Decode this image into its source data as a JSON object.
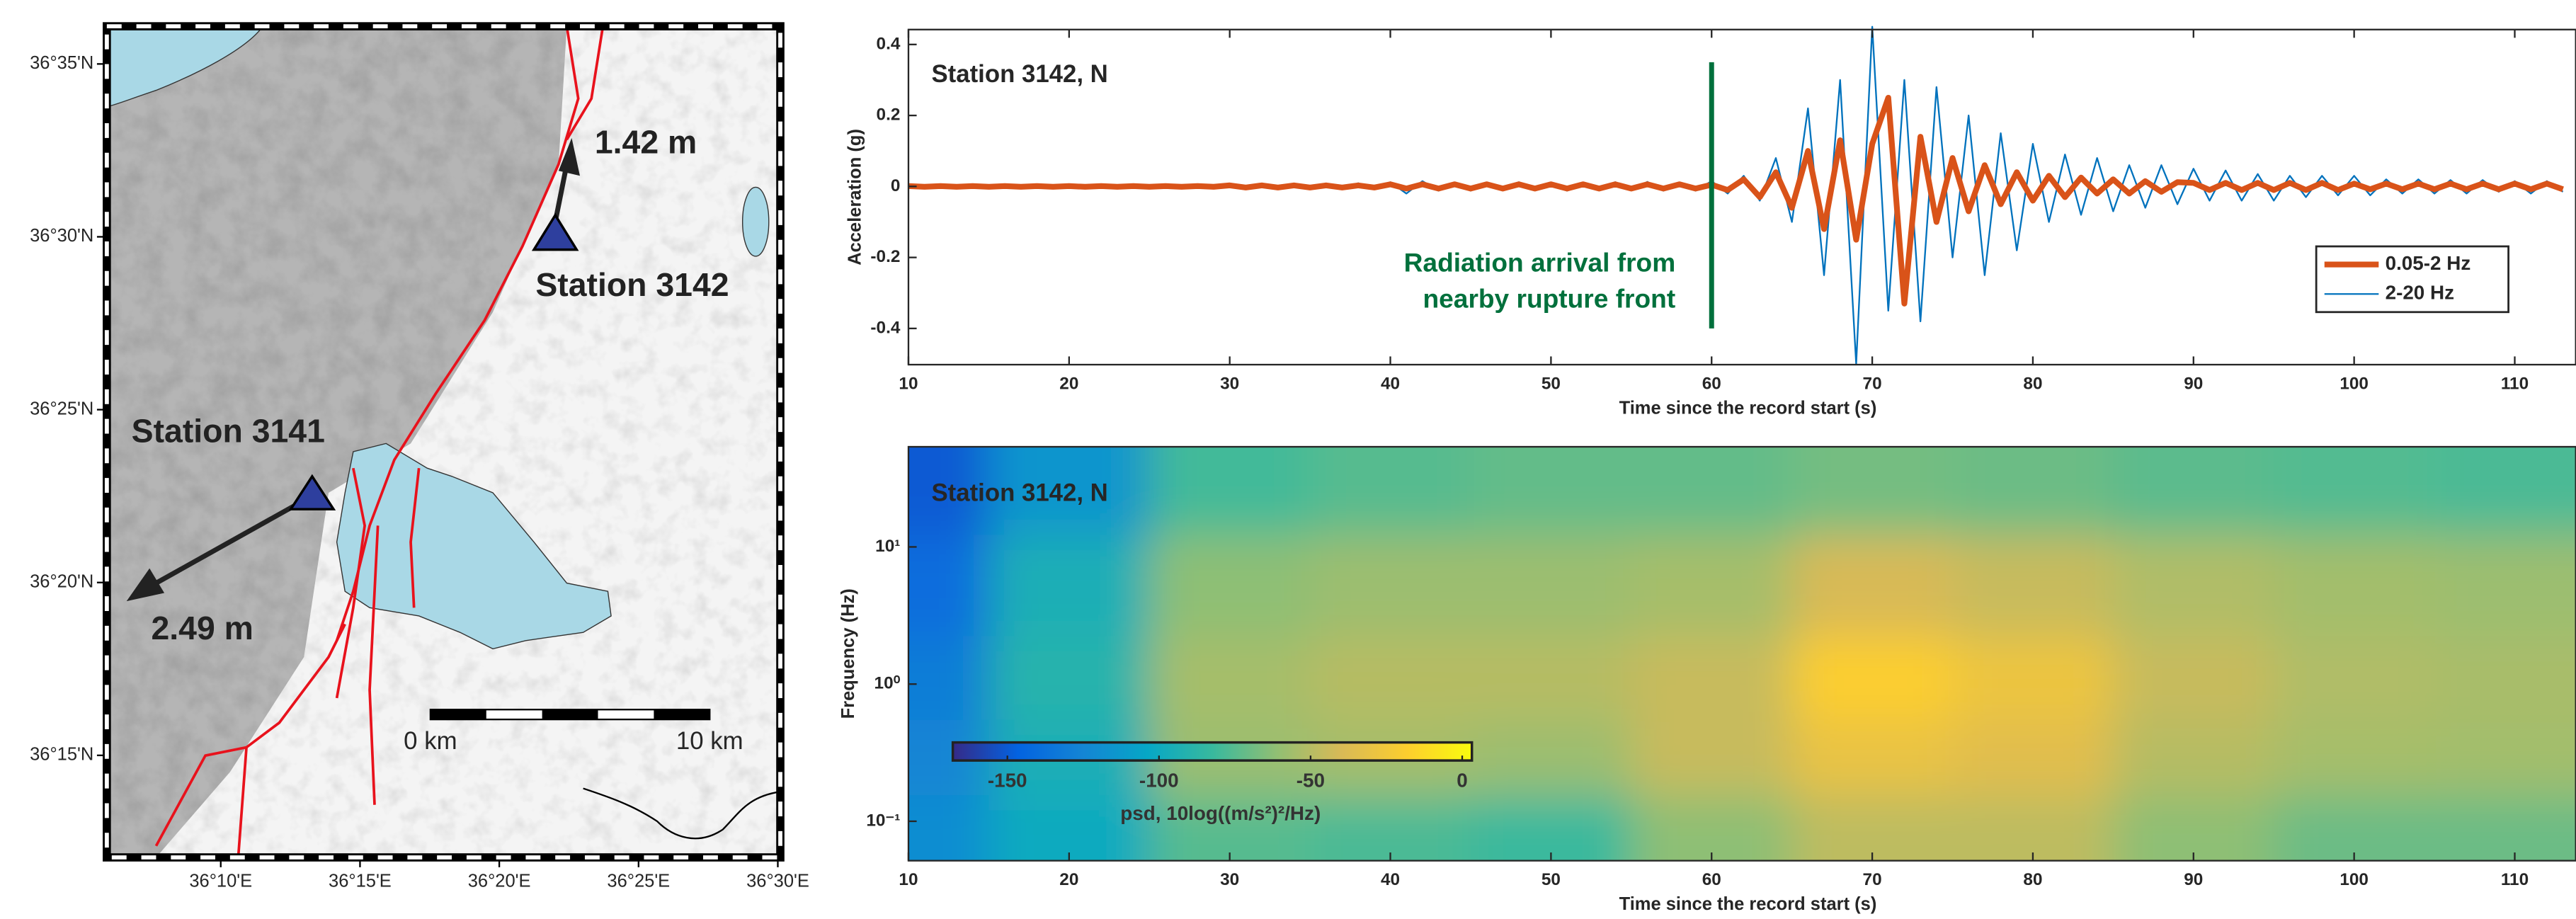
{
  "chart_data": [
    {
      "type": "map",
      "xlim": [
        36.0985,
        36.5015
      ],
      "ylim": [
        36.2008,
        36.6015
      ],
      "xticks": [
        {
          "value": 36.16667,
          "label": "36°10'E"
        },
        {
          "value": 36.25,
          "label": "36°15'E"
        },
        {
          "value": 36.33333,
          "label": "36°20'E"
        },
        {
          "value": 36.41667,
          "label": "36°25'E"
        },
        {
          "value": 36.5,
          "label": "36°30'E"
        }
      ],
      "yticks": [
        {
          "value": 36.25,
          "label": "36°15'N"
        },
        {
          "value": 36.33333,
          "label": "36°20'N"
        },
        {
          "value": 36.41667,
          "label": "36°25'N"
        },
        {
          "value": 36.5,
          "label": "36°30'N"
        },
        {
          "value": 36.58333,
          "label": "36°35'N"
        }
      ],
      "annotations": [
        "Station 3142",
        "1.42 m",
        "Station 3141",
        "2.49 m"
      ],
      "scale_bar": [
        "0 km",
        "10 km"
      ]
    },
    {
      "type": "line",
      "title": "Station 3142, N",
      "xlabel": "Time since the record start (s)",
      "ylabel": "Acceleration (g)",
      "x": [
        10,
        11,
        12,
        13,
        14,
        15,
        16,
        17,
        18,
        19,
        20,
        21,
        22,
        23,
        24,
        25,
        26,
        27,
        28,
        29,
        30,
        31,
        32,
        33,
        34,
        35,
        36,
        37,
        38,
        39,
        40,
        41,
        42,
        43,
        44,
        45,
        46,
        47,
        48,
        49,
        50,
        51,
        52,
        53,
        54,
        55,
        56,
        57,
        58,
        59,
        60,
        61,
        62,
        63,
        64,
        65,
        66,
        67,
        68,
        69,
        70,
        71,
        72,
        73,
        74,
        75,
        76,
        77,
        78,
        79,
        80,
        81,
        82,
        83,
        84,
        85,
        86,
        87,
        88,
        89,
        90,
        91,
        92,
        93,
        94,
        95,
        96,
        97,
        98,
        99,
        100,
        101,
        102,
        103,
        104,
        105,
        106,
        107,
        108,
        109,
        110,
        111,
        112,
        113
      ],
      "series": [
        {
          "name": "0.05-2 Hz",
          "color": "#d95319",
          "line_width": 3.5,
          "values": [
            0.001,
            -0.001,
            0.001,
            -0.001,
            0.001,
            -0.001,
            0.001,
            -0.001,
            0.001,
            -0.001,
            0.001,
            -0.001,
            0.001,
            -0.001,
            0.001,
            -0.001,
            0.001,
            -0.001,
            0.001,
            -0.001,
            0.003,
            -0.003,
            0.003,
            -0.003,
            0.003,
            -0.003,
            0.003,
            -0.003,
            0.003,
            -0.003,
            0.006,
            -0.006,
            0.006,
            -0.006,
            0.006,
            -0.006,
            0.006,
            -0.006,
            0.006,
            -0.006,
            0.006,
            -0.006,
            0.006,
            -0.006,
            0.006,
            -0.006,
            0.006,
            -0.006,
            0.006,
            -0.006,
            0.005,
            -0.01,
            0.02,
            -0.03,
            0.04,
            -0.06,
            0.1,
            -0.12,
            0.13,
            -0.15,
            0.12,
            0.25,
            -0.33,
            0.14,
            -0.1,
            0.08,
            -0.07,
            0.06,
            -0.05,
            0.04,
            -0.04,
            0.03,
            -0.03,
            0.025,
            -0.02,
            0.02,
            -0.02,
            0.015,
            -0.015,
            0.012,
            0.01,
            -0.01,
            0.01,
            -0.01,
            0.01,
            -0.01,
            0.01,
            -0.01,
            0.01,
            -0.01,
            0.008,
            -0.008,
            0.008,
            -0.008,
            0.008,
            -0.008,
            0.008,
            -0.008,
            0.008,
            -0.008,
            0.008,
            -0.008,
            0.008,
            -0.008
          ]
        },
        {
          "name": "2-20 Hz",
          "color": "#0072bd",
          "line_width": 1,
          "values": [
            0.003,
            -0.004,
            0.004,
            -0.003,
            0.005,
            -0.004,
            0.003,
            -0.005,
            0.004,
            -0.003,
            0.005,
            -0.004,
            0.004,
            -0.005,
            0.003,
            -0.004,
            0.005,
            -0.004,
            0.006,
            -0.005,
            0.008,
            -0.007,
            0.006,
            -0.008,
            0.007,
            -0.006,
            0.008,
            -0.007,
            0.009,
            -0.008,
            0.012,
            -0.02,
            0.015,
            -0.012,
            0.01,
            -0.012,
            0.011,
            -0.01,
            0.012,
            -0.011,
            0.01,
            -0.012,
            0.011,
            -0.01,
            0.012,
            -0.011,
            0.013,
            -0.012,
            0.01,
            -0.012,
            0.015,
            -0.02,
            0.03,
            -0.04,
            0.08,
            -0.1,
            0.22,
            -0.25,
            0.3,
            -0.5,
            0.45,
            -0.35,
            0.3,
            -0.38,
            0.28,
            -0.2,
            0.2,
            -0.25,
            0.15,
            -0.18,
            0.12,
            -0.1,
            0.09,
            -0.08,
            0.08,
            -0.07,
            0.06,
            -0.06,
            0.06,
            -0.05,
            0.05,
            -0.04,
            0.045,
            -0.04,
            0.035,
            -0.04,
            0.03,
            -0.03,
            0.03,
            -0.025,
            0.03,
            -0.025,
            0.02,
            -0.02,
            0.02,
            -0.02,
            0.018,
            -0.02,
            0.018,
            -0.015,
            0.015,
            -0.02,
            0.015,
            -0.015
          ]
        }
      ],
      "xlim": [
        10,
        113.8
      ],
      "ylim": [
        -0.502,
        0.442
      ],
      "xticks": [
        10,
        20,
        30,
        40,
        50,
        60,
        70,
        80,
        90,
        100,
        110
      ],
      "yticks": [
        -0.4,
        -0.2,
        0,
        0.2,
        0.4
      ],
      "annotation": {
        "text": [
          "Radiation arrival from",
          "nearby rupture front"
        ],
        "x": 60,
        "y": [
          -0.4,
          0.35
        ],
        "color": "#00703c"
      },
      "legend": "lower right"
    },
    {
      "type": "heatmap",
      "title": "Station 3142, N",
      "xlabel": "Time since the record start (s)",
      "ylabel": "Frequency (Hz)",
      "x": [
        10,
        20,
        30,
        40,
        50,
        60,
        70,
        80,
        90,
        100,
        110
      ],
      "y": [
        30,
        5,
        1,
        0.3,
        0.08
      ],
      "values": [
        [
          -150,
          -115,
          -80,
          -75,
          -72,
          -72,
          -68,
          -70,
          -74,
          -76,
          -78
        ],
        [
          -140,
          -95,
          -62,
          -58,
          -58,
          -55,
          -40,
          -45,
          -52,
          -56,
          -58
        ],
        [
          -130,
          -90,
          -55,
          -50,
          -50,
          -45,
          -18,
          -28,
          -45,
          -52,
          -54
        ],
        [
          -125,
          -95,
          -58,
          -55,
          -58,
          -45,
          -30,
          -35,
          -50,
          -55,
          -56
        ],
        [
          -120,
          -100,
          -75,
          -78,
          -82,
          -62,
          -48,
          -48,
          -62,
          -70,
          -70
        ]
      ],
      "xlim": [
        10,
        113.8
      ],
      "ylim": [
        0.0516,
        53.7
      ],
      "log_y": true,
      "xticks": [
        10,
        20,
        30,
        40,
        50,
        60,
        70,
        80,
        90,
        100,
        110
      ],
      "yticks": [
        {
          "value": 0.1,
          "label": "10⁻¹"
        },
        {
          "value": 1,
          "label": "10⁰"
        },
        {
          "value": 10,
          "label": "10¹"
        }
      ],
      "colormap": "parula",
      "colorbar": {
        "label": "psd, 10log((m/s²)²/Hz)",
        "lim": [
          -168,
          3.2
        ],
        "ticks": [
          -150,
          -100,
          -50,
          0
        ]
      }
    }
  ]
}
